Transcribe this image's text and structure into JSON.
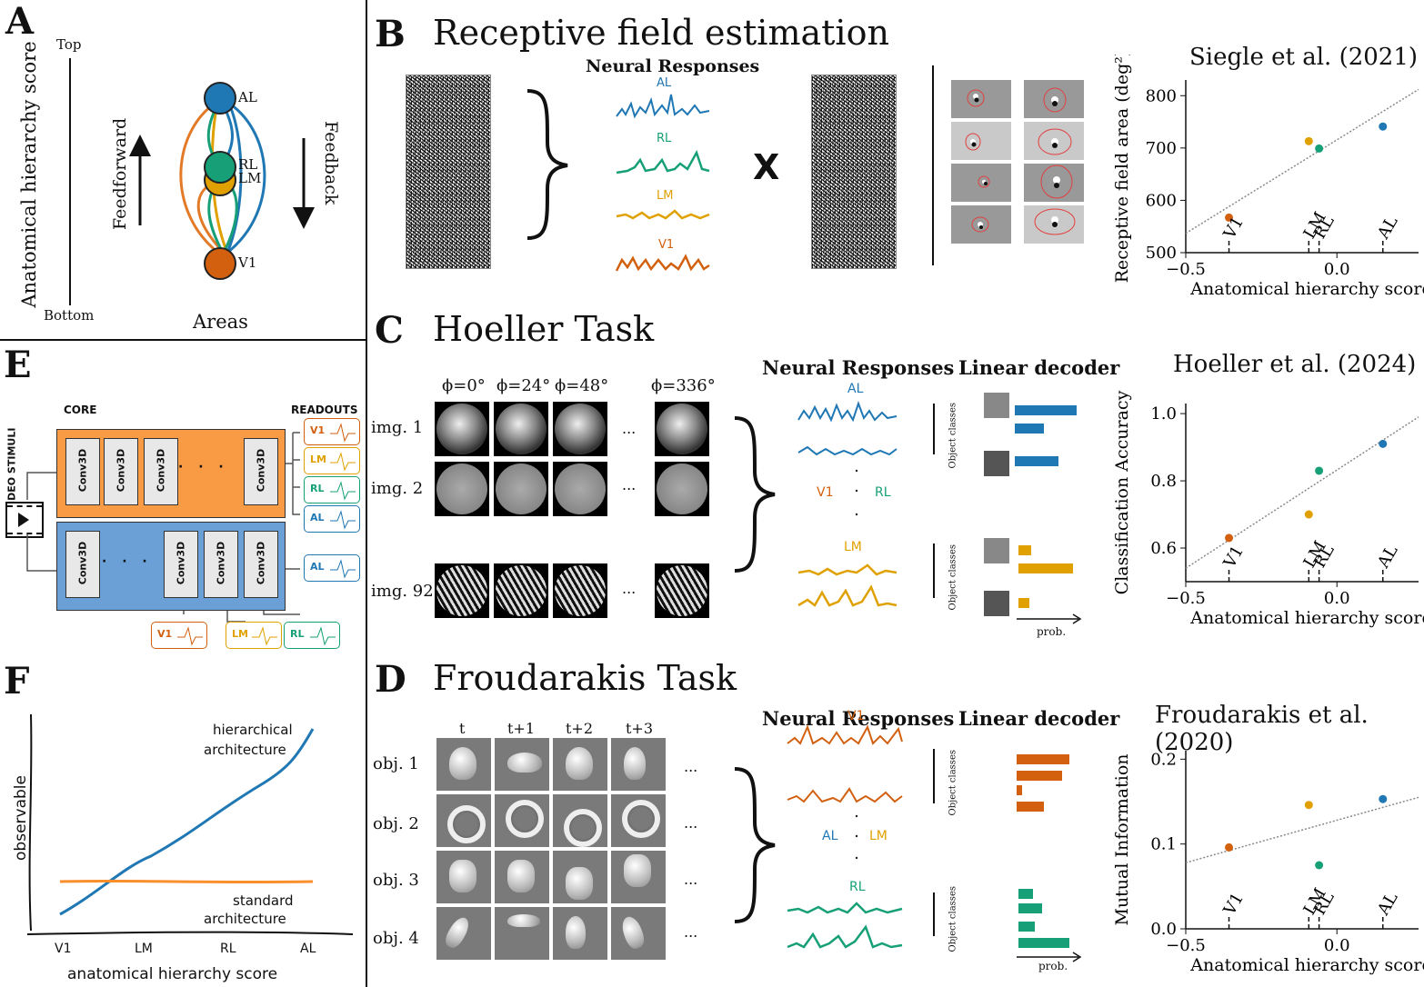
{
  "panels": {
    "A": {
      "label": "A",
      "yaxis_label": "Anatomical hierarchy score",
      "top_label": "Top",
      "bottom_label": "Bottom",
      "feedforward": "Feedforward",
      "feedback": "Feedback",
      "areas_label": "Areas",
      "nodes": [
        "AL",
        "RL",
        "LM",
        "V1"
      ]
    },
    "B": {
      "label": "B",
      "title": "Receptive field estimation",
      "neural_responses": "Neural Responses",
      "traces": [
        "AL",
        "RL",
        "LM",
        "V1"
      ],
      "times_symbol": "X"
    },
    "C": {
      "label": "C",
      "title": "Hoeller Task",
      "angles": [
        "ϕ=0°",
        "ϕ=24°",
        "ϕ=48°",
        "ϕ=336°"
      ],
      "rows": [
        "img. 1",
        "img. 2",
        "img. 92"
      ],
      "ellipsis": "...",
      "neural_responses": "Neural Responses",
      "linear_decoder": "Linear decoder",
      "traces_top": "AL",
      "mid_left": "V1",
      "mid_right": "RL",
      "traces_bottom": "LM",
      "object_classes": "Object classes",
      "prob": "prob."
    },
    "D": {
      "label": "D",
      "title": "Froudarakis Task",
      "times": [
        "t",
        "t+1",
        "t+2",
        "t+3"
      ],
      "rows": [
        "obj. 1",
        "obj. 2",
        "obj. 3",
        "obj. 4"
      ],
      "ellipsis": "...",
      "neural_responses": "Neural Responses",
      "linear_decoder": "Linear decoder",
      "traces_top": "V1",
      "mid_left": "AL",
      "mid_right": "LM",
      "traces_bottom": "RL",
      "object_classes": "Object classes",
      "prob": "prob."
    },
    "E": {
      "label": "E",
      "video_stimuli": "VIDEO STIMULI",
      "core": "CORE",
      "readouts": "READOUTS",
      "conv": "Conv3D",
      "dots": "· · ·",
      "readout_labels": [
        "V1",
        "LM",
        "RL",
        "AL"
      ]
    },
    "F": {
      "label": "F",
      "ylabel": "observable",
      "xlabel": "anatomical hierarchy score",
      "xticks": [
        "V1",
        "LM",
        "RL",
        "AL"
      ],
      "hier_label_1": "hierarchical",
      "hier_label_2": "architecture",
      "std_label_1": "standard",
      "std_label_2": "architecture"
    }
  },
  "colors": {
    "AL": "#1f77b4",
    "RL": "#17a077",
    "LM": "#e0a100",
    "V1": "#d2600f",
    "core_orange": "#f99a45",
    "core_blue": "#6aa0d6"
  },
  "chart_data": [
    {
      "type": "scatter",
      "title": "Siegle et al. (2021)",
      "xlabel": "Anatomical hierarchy score",
      "ylabel": "Receptive field area (deg²)",
      "xlim": [
        -0.5,
        0.27
      ],
      "ylim": [
        500,
        830
      ],
      "xticks": [
        "−0.5",
        "0.0"
      ],
      "yticks": [
        "500",
        "600",
        "700",
        "800"
      ],
      "points": [
        {
          "name": "V1",
          "x": -0.357,
          "y": 567
        },
        {
          "name": "LM",
          "x": -0.093,
          "y": 713
        },
        {
          "name": "RL",
          "x": -0.059,
          "y": 699
        },
        {
          "name": "AL",
          "x": 0.152,
          "y": 741
        }
      ],
      "fit": {
        "x": [
          -0.5,
          0.27
        ],
        "y": [
          537,
          812
        ]
      }
    },
    {
      "type": "scatter",
      "title": "Hoeller et al. (2024)",
      "xlabel": "Anatomical hierarchy score",
      "ylabel": "Classification Accuracy",
      "xlim": [
        -0.5,
        0.27
      ],
      "ylim": [
        0.5,
        1.03
      ],
      "xticks": [
        "−0.5",
        "0.0"
      ],
      "yticks": [
        "0.6",
        "0.8",
        "1.0"
      ],
      "points": [
        {
          "name": "V1",
          "x": -0.357,
          "y": 0.63
        },
        {
          "name": "LM",
          "x": -0.093,
          "y": 0.7
        },
        {
          "name": "RL",
          "x": -0.059,
          "y": 0.83
        },
        {
          "name": "AL",
          "x": 0.152,
          "y": 0.91
        }
      ],
      "fit": {
        "x": [
          -0.5,
          0.27
        ],
        "y": [
          0.54,
          0.99
        ]
      }
    },
    {
      "type": "scatter",
      "title": "Froudarakis et al. (2020)",
      "xlabel": "Anatomical hierarchy score",
      "ylabel": "Mutual Information",
      "xlim": [
        -0.5,
        0.27
      ],
      "ylim": [
        0.0,
        0.21
      ],
      "xticks": [
        "−0.5",
        "0.0"
      ],
      "yticks": [
        "0.0",
        "0.1",
        "0.2"
      ],
      "points": [
        {
          "name": "V1",
          "x": -0.357,
          "y": 0.096
        },
        {
          "name": "LM",
          "x": -0.093,
          "y": 0.146
        },
        {
          "name": "RL",
          "x": -0.059,
          "y": 0.075
        },
        {
          "name": "AL",
          "x": 0.152,
          "y": 0.153
        }
      ],
      "fit": {
        "x": [
          -0.5,
          0.27
        ],
        "y": [
          0.078,
          0.155
        ]
      }
    }
  ]
}
